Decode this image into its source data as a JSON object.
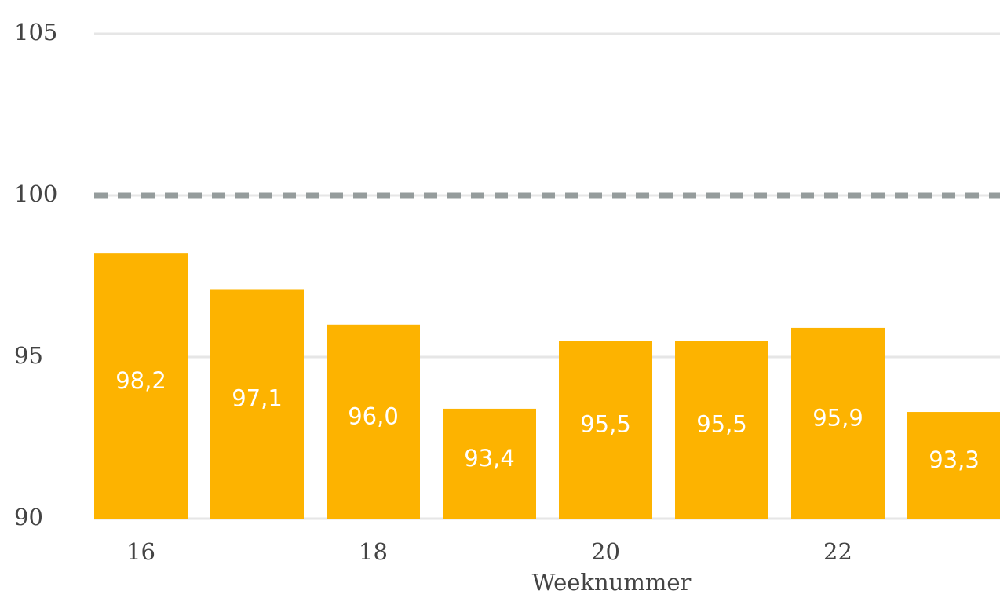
{
  "chart_data": {
    "type": "bar",
    "x_label": "Weeknummer",
    "categories": [
      "16",
      null,
      "18",
      null,
      "20",
      null,
      "22",
      null
    ],
    "values": [
      98.2,
      97.1,
      96.0,
      93.4,
      95.5,
      95.5,
      95.9,
      93.3
    ],
    "value_labels": [
      "98,2",
      "97,1",
      "96,0",
      "93,4",
      "95,5",
      "95,5",
      "95,9",
      "93,3"
    ],
    "color": "#fdb300",
    "ylim": [
      90,
      105
    ],
    "yticks": [
      90,
      95,
      100,
      105
    ],
    "grid": true,
    "reference_line": 100,
    "reference_color": "#959c9c"
  }
}
